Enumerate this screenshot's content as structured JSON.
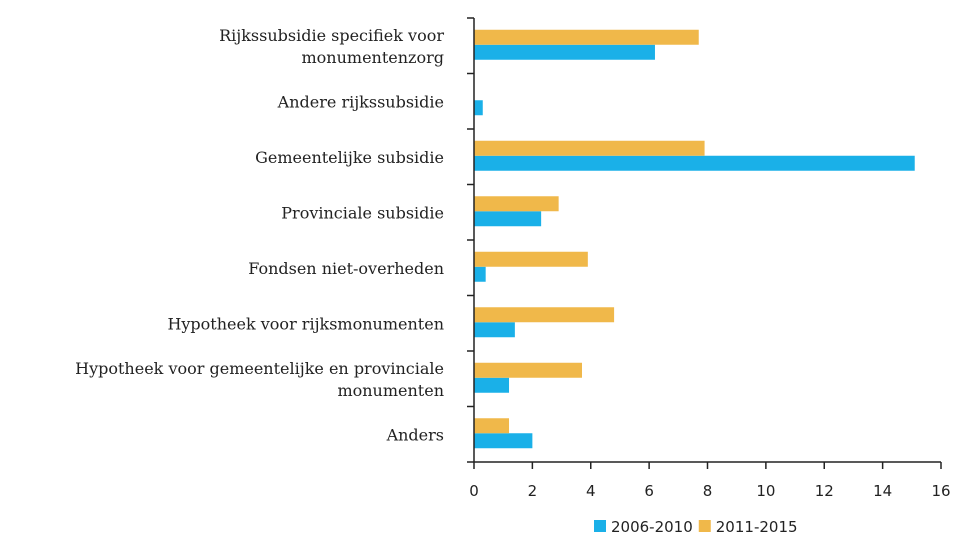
{
  "chart_data": {
    "type": "hbar",
    "categories": [
      [
        "Rijkssubsidie specifiek voor",
        "monumentenzorg"
      ],
      [
        "Andere rijkssubsidie"
      ],
      [
        "Gemeentelijke subsidie"
      ],
      [
        "Provinciale subsidie"
      ],
      [
        "Fondsen niet-overheden"
      ],
      [
        "Hypotheek voor rijksmonumenten"
      ],
      [
        "Hypotheek voor gemeentelijke en provinciale",
        "monumenten"
      ],
      [
        "Anders"
      ]
    ],
    "series": [
      {
        "name": "2006-2010",
        "color": "#1ab0e8",
        "values": [
          6.2,
          0.3,
          15.1,
          2.3,
          0.4,
          1.4,
          1.2,
          2.0
        ]
      },
      {
        "name": "2011-2015",
        "color": "#f0b84a",
        "values": [
          7.7,
          0,
          7.9,
          2.9,
          3.9,
          4.8,
          3.7,
          1.2
        ]
      }
    ],
    "xlim": [
      0,
      16
    ],
    "xticks": [
      0,
      2,
      4,
      6,
      8,
      10,
      12,
      14,
      16
    ]
  }
}
